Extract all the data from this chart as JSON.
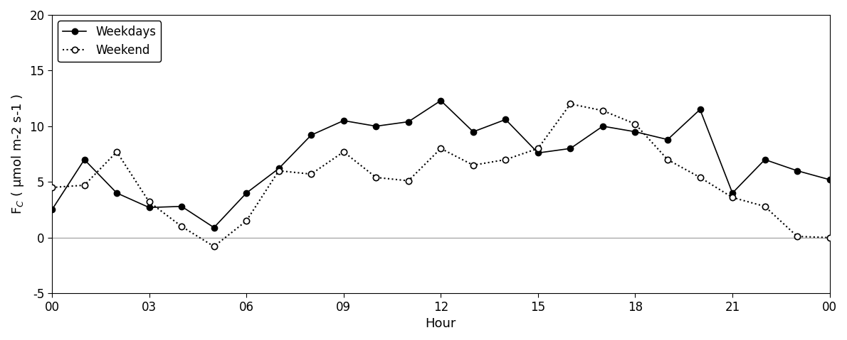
{
  "xlabel": "Hour",
  "ylabel_display": "F$_C$ ( μmol m-2 s-1 )",
  "xlim": [
    0,
    24
  ],
  "ylim": [
    -5,
    20
  ],
  "yticks": [
    -5,
    0,
    5,
    10,
    15,
    20
  ],
  "xtick_labels": [
    "00",
    "03",
    "06",
    "09",
    "12",
    "15",
    "18",
    "21",
    "00"
  ],
  "xtick_positions": [
    0,
    3,
    6,
    9,
    12,
    15,
    18,
    21,
    24
  ],
  "weekdays_x": [
    0,
    1,
    2,
    3,
    4,
    5,
    6,
    7,
    8,
    9,
    10,
    11,
    12,
    13,
    14,
    15,
    16,
    17,
    18,
    19,
    20,
    21,
    22,
    23,
    24
  ],
  "weekdays_y": [
    2.5,
    7.0,
    4.0,
    2.7,
    2.8,
    0.9,
    4.0,
    6.2,
    9.2,
    10.5,
    10.0,
    10.4,
    12.3,
    9.5,
    10.6,
    7.6,
    8.0,
    10.0,
    9.5,
    8.8,
    11.5,
    4.0,
    7.0,
    6.0,
    5.2
  ],
  "weekend_x": [
    0,
    1,
    2,
    3,
    4,
    5,
    6,
    7,
    8,
    9,
    10,
    11,
    12,
    13,
    14,
    15,
    16,
    17,
    18,
    19,
    20,
    21,
    22,
    23,
    24
  ],
  "weekend_y": [
    4.5,
    4.7,
    7.7,
    3.2,
    1.0,
    -0.8,
    1.5,
    6.0,
    5.7,
    7.7,
    5.4,
    5.1,
    8.0,
    6.5,
    7.0,
    8.0,
    12.0,
    11.4,
    10.2,
    7.0,
    5.4,
    3.6,
    2.8,
    0.1,
    0.0
  ],
  "line_color": "#000000",
  "background_color": "#ffffff",
  "zero_line_color": "#aaaaaa",
  "legend_fontsize": 12,
  "axis_fontsize": 13,
  "tick_fontsize": 12
}
